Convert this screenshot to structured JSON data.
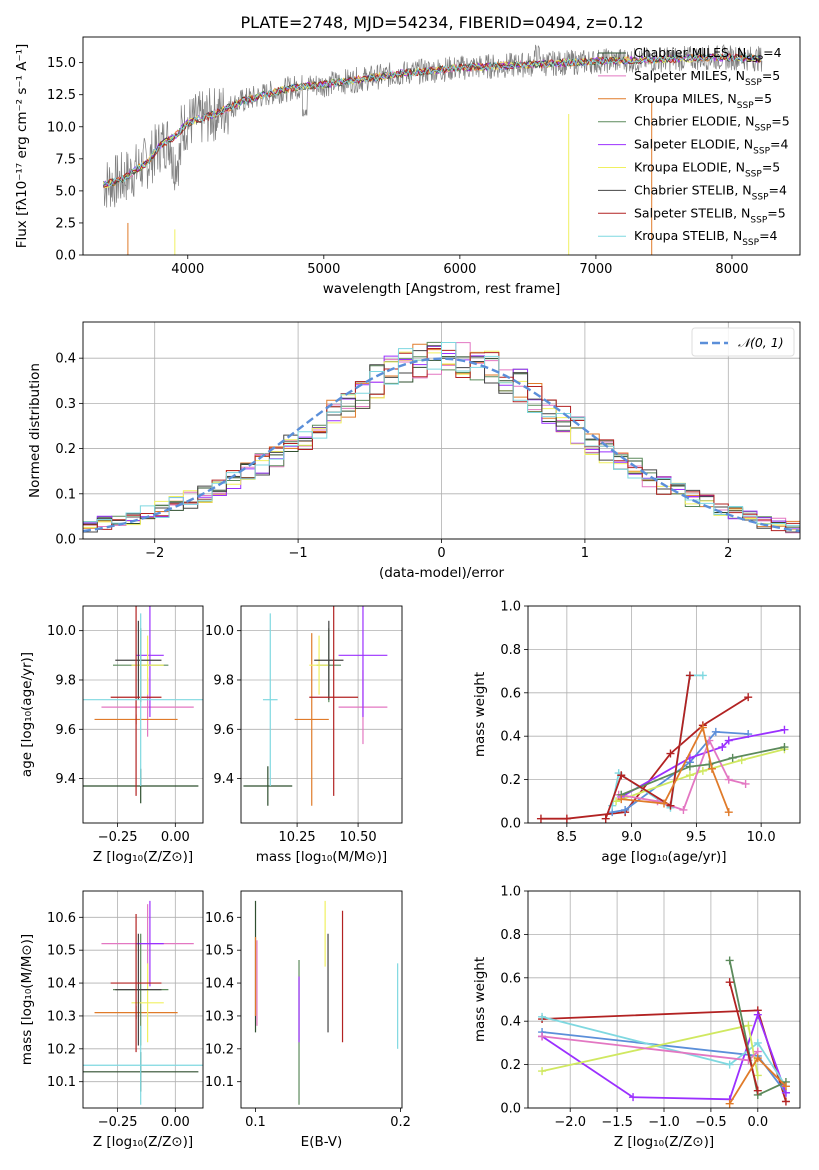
{
  "title": "PLATE=2748, MJD=54234, FIBERID=0494, z=0.12",
  "series_colors": [
    "#2f4f2f",
    "#e377c2",
    "#e07b2a",
    "#5b8a5b",
    "#9b30ff",
    "#f0f060",
    "#444444",
    "#b22222",
    "#7fd8e0"
  ],
  "chart_data": [
    {
      "type": "line",
      "name": "spectrum",
      "xlabel": "wavelength [Angstrom, rest frame]",
      "ylabel": "Flux [fλ10⁻¹⁷ erg cm⁻² s⁻¹ A⁻¹]",
      "xlim": [
        3230,
        8500
      ],
      "ylim": [
        0,
        17
      ],
      "xticks": [
        4000,
        5000,
        6000,
        7000,
        8000
      ],
      "yticks": [
        "0.0",
        "2.5",
        "5.0",
        "7.5",
        "10.0",
        "12.5",
        "15.0"
      ],
      "grid": false,
      "legend_position": "top-right",
      "legend": [
        "Chabrier MILES, N_SSP=4",
        "Salpeter MILES, N_SSP=5",
        "Kroupa MILES, N_SSP=5",
        "Chabrier ELODIE, N_SSP=5",
        "Salpeter ELODIE, N_SSP=4",
        "Kroupa ELODIE, N_SSP=5",
        "Chabrier STELIB, N_SSP=4",
        "Salpeter STELIB, N_SSP=5",
        "Kroupa STELIB, N_SSP=4"
      ],
      "data_envelope": {
        "x": [
          3380,
          3500,
          3600,
          3700,
          3800,
          3900,
          4000,
          4200,
          4400,
          4600,
          4800,
          5000,
          5200,
          5400,
          5600,
          5800,
          6000,
          6200,
          6400,
          6600,
          6800,
          7000,
          7200,
          7400,
          7600,
          7800,
          8000,
          8200
        ],
        "y": [
          5.5,
          5.8,
          6.5,
          7.2,
          8.6,
          9.2,
          10.3,
          11.0,
          12.0,
          12.6,
          13.1,
          13.3,
          13.6,
          13.9,
          14.2,
          14.4,
          14.6,
          14.7,
          14.8,
          14.9,
          15.0,
          15.1,
          15.2,
          15.2,
          15.3,
          15.4,
          15.4,
          15.3
        ]
      }
    },
    {
      "type": "step",
      "name": "residual-histogram",
      "xlabel": "(data-model)/error",
      "ylabel": "Normed distribution",
      "xlim": [
        -2.5,
        2.5
      ],
      "ylim": [
        0,
        0.48
      ],
      "xticks": [
        "−2",
        "−1",
        "0",
        "1",
        "2"
      ],
      "yticks": [
        "0.0",
        "0.1",
        "0.2",
        "0.3",
        "0.4"
      ],
      "grid": true,
      "legend_position": "top-right",
      "legend": [
        "𝒩(0, 1)"
      ],
      "bin_width": 0.1,
      "x": [
        -2.45,
        -2.35,
        -2.25,
        -2.15,
        -2.05,
        -1.95,
        -1.85,
        -1.75,
        -1.65,
        -1.55,
        -1.45,
        -1.35,
        -1.25,
        -1.15,
        -1.05,
        -0.95,
        -0.85,
        -0.75,
        -0.65,
        -0.55,
        -0.45,
        -0.35,
        -0.25,
        -0.15,
        -0.05,
        0.05,
        0.15,
        0.25,
        0.35,
        0.45,
        0.55,
        0.65,
        0.75,
        0.85,
        0.95,
        1.05,
        1.15,
        1.25,
        1.35,
        1.45,
        1.55,
        1.65,
        1.75,
        1.85,
        1.95,
        2.05,
        2.15,
        2.25,
        2.35,
        2.45
      ],
      "values": [
        0.028,
        0.035,
        0.04,
        0.048,
        0.056,
        0.065,
        0.075,
        0.088,
        0.1,
        0.115,
        0.13,
        0.148,
        0.165,
        0.185,
        0.205,
        0.225,
        0.25,
        0.275,
        0.3,
        0.325,
        0.35,
        0.37,
        0.385,
        0.395,
        0.4,
        0.4,
        0.395,
        0.39,
        0.38,
        0.36,
        0.34,
        0.315,
        0.29,
        0.265,
        0.24,
        0.215,
        0.195,
        0.175,
        0.155,
        0.135,
        0.12,
        0.105,
        0.09,
        0.078,
        0.066,
        0.055,
        0.046,
        0.038,
        0.032,
        0.027
      ]
    },
    {
      "type": "scatter",
      "name": "age-vs-metallicity",
      "xlabel": "Z [log₁₀(Z/Z⊙)]",
      "ylabel": "age  [log₁₀(age/yr)]",
      "xlim": [
        -0.4,
        0.12
      ],
      "ylim": [
        9.22,
        10.1
      ],
      "xticks": [
        "−0.25",
        "0.00"
      ],
      "yticks": [
        "9.4",
        "9.6",
        "9.8",
        "10.0"
      ],
      "grid": true,
      "points": [
        {
          "x": -0.15,
          "y": 9.37,
          "xerr": 0.25,
          "yerr": 0.07
        },
        {
          "x": -0.12,
          "y": 9.69,
          "xerr": 0.2,
          "yerr": 0.12
        },
        {
          "x": -0.17,
          "y": 9.64,
          "xerr": 0.18,
          "yerr": 0.02
        },
        {
          "x": -0.15,
          "y": 9.86,
          "xerr": 0.12,
          "yerr": 0.15
        },
        {
          "x": -0.11,
          "y": 9.9,
          "xerr": 0.06,
          "yerr": 0.25
        },
        {
          "x": -0.12,
          "y": 9.86,
          "xerr": 0.07,
          "yerr": 0.12
        },
        {
          "x": -0.16,
          "y": 9.88,
          "xerr": 0.1,
          "yerr": 0.16
        },
        {
          "x": -0.17,
          "y": 9.73,
          "xerr": 0.11,
          "yerr": 0.4
        },
        {
          "x": -0.15,
          "y": 9.72,
          "xerr": 0.28,
          "yerr": 0.35
        }
      ]
    },
    {
      "type": "scatter",
      "name": "age-vs-mass",
      "xlabel": "mass [log₁₀(M/M⊙)]",
      "ylabel": "",
      "xlim": [
        10.02,
        10.68
      ],
      "ylim": [
        9.22,
        10.1
      ],
      "xticks": [
        "10.25",
        "10.50"
      ],
      "yticks": [
        "9.4",
        "9.6",
        "9.8",
        "10.0"
      ],
      "grid": true,
      "points": [
        {
          "x": 10.13,
          "y": 9.37,
          "xerr": 0.1,
          "yerr": 0.08
        },
        {
          "x": 10.52,
          "y": 9.69,
          "xerr": 0.1,
          "yerr": 0.15
        },
        {
          "x": 10.31,
          "y": 9.64,
          "xerr": 0.07,
          "yerr": 0.35
        },
        {
          "x": 10.38,
          "y": 9.86,
          "xerr": 0.05,
          "yerr": 0.15
        },
        {
          "x": 10.52,
          "y": 9.9,
          "xerr": 0.1,
          "yerr": 0.25
        },
        {
          "x": 10.34,
          "y": 9.86,
          "xerr": 0.04,
          "yerr": 0.12
        },
        {
          "x": 10.38,
          "y": 9.88,
          "xerr": 0.06,
          "yerr": 0.16
        },
        {
          "x": 10.4,
          "y": 9.73,
          "xerr": 0.1,
          "yerr": 0.4
        },
        {
          "x": 10.14,
          "y": 9.72,
          "xerr": 0.03,
          "yerr": 0.35
        }
      ]
    },
    {
      "type": "line",
      "name": "weight-vs-age",
      "xlabel": "age  [log₁₀(age/yr)]",
      "ylabel": "mass weight",
      "xlim": [
        8.2,
        10.3
      ],
      "ylim": [
        0,
        1
      ],
      "xticks": [
        "8.5",
        "9.0",
        "9.5",
        "10.0"
      ],
      "yticks": [
        "0.0",
        "0.2",
        "0.4",
        "0.6",
        "0.8",
        "1.0"
      ],
      "grid": true,
      "series": [
        {
          "x": [
            8.3,
            8.5,
            8.95,
            9.3,
            9.55,
            9.9
          ],
          "y": [
            0.02,
            0.02,
            0.05,
            0.32,
            0.45,
            0.58
          ]
        },
        {
          "x": [
            8.85,
            8.95,
            9.45,
            9.65,
            9.9
          ],
          "y": [
            0.05,
            0.06,
            0.28,
            0.42,
            0.41
          ]
        },
        {
          "x": [
            8.92,
            9.45,
            9.7,
            9.75,
            10.18
          ],
          "y": [
            0.12,
            0.3,
            0.35,
            0.38,
            0.43
          ]
        },
        {
          "x": [
            8.85,
            8.9,
            9.3,
            9.45,
            9.55
          ],
          "y": [
            0.08,
            0.23,
            0.07,
            0.68,
            0.68
          ]
        },
        {
          "x": [
            8.88,
            9.45,
            9.55,
            9.85,
            10.18
          ],
          "y": [
            0.1,
            0.22,
            0.24,
            0.29,
            0.34
          ]
        },
        {
          "x": [
            8.9,
            9.2,
            9.4,
            9.6,
            9.75,
            9.88
          ],
          "y": [
            0.13,
            0.1,
            0.06,
            0.38,
            0.2,
            0.18
          ]
        },
        {
          "x": [
            8.92,
            9.45,
            9.6,
            9.78,
            10.18
          ],
          "y": [
            0.13,
            0.26,
            0.27,
            0.3,
            0.35
          ]
        },
        {
          "x": [
            8.8,
            8.92,
            9.3,
            9.45
          ],
          "y": [
            0.02,
            0.22,
            0.08,
            0.68
          ]
        },
        {
          "x": [
            8.92,
            9.25,
            9.55,
            9.62,
            9.75
          ],
          "y": [
            0.11,
            0.09,
            0.44,
            0.25,
            0.05
          ]
        }
      ]
    },
    {
      "type": "scatter",
      "name": "mass-vs-metallicity",
      "xlabel": "Z [log₁₀(Z/Z⊙)]",
      "ylabel": "mass [log₁₀(M/M⊙)]",
      "xlim": [
        -0.4,
        0.12
      ],
      "ylim": [
        10.02,
        10.68
      ],
      "xticks": [
        "−0.25",
        "0.00"
      ],
      "yticks": [
        "10.1",
        "10.2",
        "10.3",
        "10.4",
        "10.5",
        "10.6"
      ],
      "grid": true,
      "points": [
        {
          "x": -0.15,
          "y": 10.13,
          "xerr": 0.25,
          "yerr": 0.06
        },
        {
          "x": -0.12,
          "y": 10.52,
          "xerr": 0.2,
          "yerr": 0.12
        },
        {
          "x": -0.17,
          "y": 10.31,
          "xerr": 0.18,
          "yerr": 0.02
        },
        {
          "x": -0.15,
          "y": 10.38,
          "xerr": 0.12,
          "yerr": 0.17
        },
        {
          "x": -0.11,
          "y": 10.52,
          "xerr": 0.06,
          "yerr": 0.13
        },
        {
          "x": -0.12,
          "y": 10.34,
          "xerr": 0.07,
          "yerr": 0.12
        },
        {
          "x": -0.16,
          "y": 10.38,
          "xerr": 0.1,
          "yerr": 0.17
        },
        {
          "x": -0.17,
          "y": 10.4,
          "xerr": 0.11,
          "yerr": 0.21
        },
        {
          "x": -0.15,
          "y": 10.15,
          "xerr": 0.28,
          "yerr": 0.12
        }
      ]
    },
    {
      "type": "scatter",
      "name": "mass-vs-ebv",
      "xlabel": "E(B-V)",
      "ylabel": "",
      "xlim": [
        0.09,
        0.201
      ],
      "ylim": [
        10.02,
        10.68
      ],
      "xticks": [
        "0.1",
        "0.2"
      ],
      "yticks": [
        "10.1",
        "10.2",
        "10.3",
        "10.4",
        "10.5",
        "10.6"
      ],
      "grid": false,
      "points": [
        {
          "x": 0.1,
          "y": 10.45,
          "yerr": 0.2
        },
        {
          "x": 0.101,
          "y": 10.4,
          "yerr": 0.13
        },
        {
          "x": 0.1,
          "y": 10.42,
          "yerr": 0.12
        },
        {
          "x": 0.13,
          "y": 10.25,
          "yerr": 0.22
        },
        {
          "x": 0.13,
          "y": 10.32,
          "yerr": 0.1
        },
        {
          "x": 0.148,
          "y": 10.55,
          "yerr": 0.1
        },
        {
          "x": 0.15,
          "y": 10.4,
          "yerr": 0.15
        },
        {
          "x": 0.16,
          "y": 10.42,
          "yerr": 0.2
        },
        {
          "x": 0.198,
          "y": 10.33,
          "yerr": 0.13
        }
      ]
    },
    {
      "type": "line",
      "name": "weight-vs-metallicity",
      "xlabel": "Z [log₁₀(Z/Z⊙)]",
      "ylabel": "mass weight",
      "xlim": [
        -2.45,
        0.45
      ],
      "ylim": [
        0,
        1
      ],
      "xticks": [
        "−2.0",
        "−1.5",
        "−1.0",
        "−0.5",
        "0.0"
      ],
      "yticks": [
        "0.0",
        "0.2",
        "0.4",
        "0.6",
        "0.8",
        "1.0"
      ],
      "grid": true,
      "series": [
        {
          "x": [
            -2.3,
            0.0,
            0.3
          ],
          "y": [
            0.41,
            0.45,
            0.03
          ]
        },
        {
          "x": [
            -2.3,
            0.0,
            0.3
          ],
          "y": [
            0.35,
            0.24,
            0.07
          ]
        },
        {
          "x": [
            -2.3,
            -1.33,
            -0.3,
            0.0,
            0.3
          ],
          "y": [
            0.33,
            0.05,
            0.04,
            0.43,
            0.07
          ]
        },
        {
          "x": [
            -2.3,
            -0.3,
            0.0,
            0.3
          ],
          "y": [
            0.42,
            0.2,
            0.3,
            0.1
          ]
        },
        {
          "x": [
            -2.3,
            -0.1,
            0.0
          ],
          "y": [
            0.17,
            0.38,
            0.15
          ]
        },
        {
          "x": [
            -2.3,
            -0.1,
            0.0
          ],
          "y": [
            0.33,
            0.22,
            0.26
          ]
        },
        {
          "x": [
            -0.3,
            0.0,
            0.3
          ],
          "y": [
            0.68,
            0.06,
            0.12
          ]
        },
        {
          "x": [
            -0.3,
            0.0
          ],
          "y": [
            0.58,
            0.08
          ]
        },
        {
          "x": [
            -0.3,
            0.0,
            0.3
          ],
          "y": [
            0.02,
            0.23,
            0.1
          ]
        }
      ]
    }
  ]
}
